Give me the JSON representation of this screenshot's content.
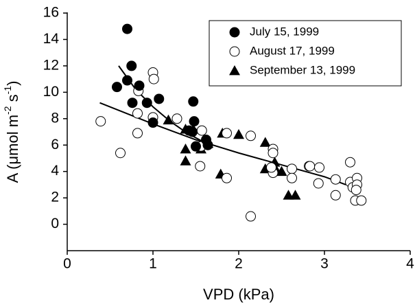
{
  "chart_data": {
    "type": "scatter",
    "x_label": "VPD (kPa)",
    "y_label": [
      "A (μmol m",
      "-2",
      " s",
      "-1",
      ")"
    ],
    "xlim": [
      0,
      4
    ],
    "xticks": [
      0,
      1,
      2,
      3,
      4
    ],
    "ylim": [
      -2,
      16
    ],
    "yticks": [
      0,
      2,
      4,
      6,
      8,
      10,
      12,
      14,
      16
    ],
    "legend": "top-right",
    "series": [
      {
        "name": "July 15, 1999",
        "color": "#000000",
        "marker": "filled-circle",
        "x": [
          0.7,
          0.58,
          0.7,
          0.75,
          0.76,
          0.84,
          0.93,
          1.0,
          1.07,
          1.47,
          1.48,
          1.46,
          1.5,
          1.62,
          1.64,
          1.42
        ],
        "values": [
          14.8,
          10.4,
          10.9,
          12.0,
          9.2,
          10.5,
          9.2,
          7.7,
          9.5,
          9.3,
          7.8,
          7.0,
          5.9,
          6.4,
          6.0,
          7.1
        ]
      },
      {
        "name": "August 17, 1999",
        "color": "#000000",
        "marker": "open-circle",
        "x": [
          0.39,
          0.62,
          0.82,
          0.82,
          0.83,
          1.0,
          1.01,
          1.0,
          1.28,
          1.57,
          1.56,
          1.55,
          1.86,
          1.86,
          2.14,
          2.14,
          2.4,
          2.4,
          2.4,
          2.62,
          2.62,
          2.82,
          2.83,
          2.93,
          2.94,
          3.13,
          3.13,
          3.3,
          3.3,
          3.33,
          3.38,
          3.38,
          3.37,
          3.36,
          3.43,
          2.38
        ],
        "values": [
          7.8,
          5.4,
          6.9,
          8.4,
          10.1,
          11.5,
          11.0,
          8.1,
          8.0,
          7.1,
          5.9,
          4.4,
          6.9,
          3.5,
          6.7,
          0.6,
          5.7,
          5.4,
          3.9,
          4.2,
          3.5,
          4.4,
          4.4,
          3.1,
          4.3,
          3.4,
          2.2,
          4.7,
          3.2,
          2.8,
          3.5,
          3.0,
          2.6,
          1.8,
          1.8,
          4.3
        ]
      },
      {
        "name": "September 13, 1999",
        "color": "#000000",
        "marker": "triangle",
        "x": [
          1.18,
          1.38,
          1.47,
          1.38,
          1.38,
          1.56,
          1.81,
          2.0,
          1.79,
          2.31,
          2.31,
          2.42,
          2.43,
          2.5,
          2.58,
          2.66
        ],
        "values": [
          7.9,
          7.2,
          7.2,
          5.7,
          4.8,
          5.7,
          6.9,
          6.8,
          3.8,
          6.2,
          4.2,
          4.7,
          4.2,
          4.0,
          2.2,
          2.2
        ]
      }
    ],
    "fit_lines": [
      {
        "color": "#000000",
        "x": [
          0.6,
          0.8,
          1.0,
          1.2,
          1.4,
          1.6,
          1.7
        ],
        "values": [
          12.0,
          10.2,
          8.9,
          7.8,
          6.9,
          6.2,
          5.8
        ]
      },
      {
        "color": "#000000",
        "x": [
          0.38,
          1.0,
          1.5,
          2.0,
          2.5,
          3.0,
          3.25
        ],
        "values": [
          9.2,
          7.6,
          6.4,
          5.4,
          4.5,
          3.6,
          3.0
        ]
      }
    ]
  }
}
